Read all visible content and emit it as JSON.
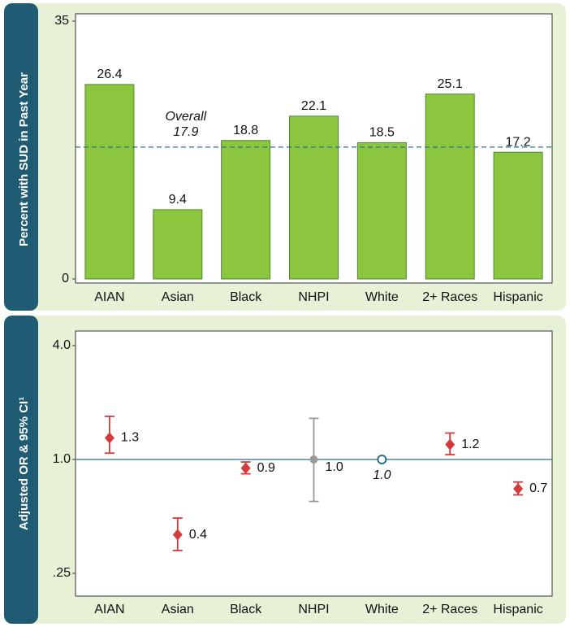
{
  "chart_data": [
    {
      "type": "bar",
      "ylabel": "Percent with SUD in Past Year",
      "categories": [
        "AIAN",
        "Asian",
        "Black",
        "NHPI",
        "White",
        "2+ Races",
        "Hispanic"
      ],
      "values": [
        26.4,
        9.4,
        18.8,
        22.1,
        18.5,
        25.1,
        17.2
      ],
      "color": "#8cc63f",
      "ylim": [
        0,
        35
      ],
      "yticks": [
        0,
        35
      ],
      "overall": {
        "label": "Overall",
        "value": 17.9,
        "color": "#2c6e8a"
      }
    },
    {
      "type": "forest",
      "ylabel": "Adjusted OR & 95% CI¹",
      "log_scale": true,
      "categories": [
        "AIAN",
        "Asian",
        "Black",
        "NHPI",
        "White",
        "2+ Races",
        "Hispanic"
      ],
      "values": [
        1.3,
        0.4,
        0.9,
        1.0,
        1.0,
        1.2,
        0.7
      ],
      "value_labels": [
        "1.3",
        "0.4",
        "0.9",
        "1.0",
        "1.0",
        "1.2",
        "0.7"
      ],
      "ci_low": [
        1.08,
        0.33,
        0.84,
        0.6,
        null,
        1.06,
        0.65
      ],
      "ci_high": [
        1.69,
        0.49,
        0.97,
        1.65,
        null,
        1.38,
        0.76
      ],
      "colors": [
        "#d33a3a",
        "#d33a3a",
        "#d33a3a",
        "#999999",
        "#2c6e8a",
        "#d33a3a",
        "#d33a3a"
      ],
      "markers": [
        "diamond",
        "diamond",
        "diamond",
        "circle",
        "open-circle",
        "diamond",
        "diamond"
      ],
      "ylim": [
        0.25,
        4.0
      ],
      "yticks": [
        {
          "value": 0.25,
          "label": ".25"
        },
        {
          "value": 1.0,
          "label": "1.0"
        },
        {
          "value": 4.0,
          "label": "4.0"
        }
      ],
      "hline": 1.0,
      "hline_color": "#2c6e8a"
    }
  ]
}
